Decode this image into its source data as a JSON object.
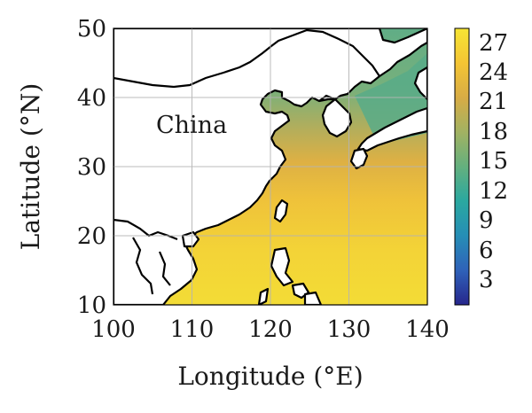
{
  "figure": {
    "map_label": "China",
    "xlabel": "Longitude (°E)",
    "ylabel": "Latitude (°N)",
    "xlim": [
      100,
      140
    ],
    "ylim": [
      10,
      50
    ],
    "x_ticks": [
      "100",
      "110",
      "120",
      "130",
      "140"
    ],
    "y_ticks": [
      "10",
      "20",
      "30",
      "40",
      "50"
    ],
    "grid": true,
    "colorbar": {
      "range": [
        0,
        28
      ],
      "ticks": [
        "3",
        "6",
        "9",
        "12",
        "15",
        "18",
        "21",
        "24",
        "27"
      ],
      "colors": [
        "#26268c",
        "#2f62b9",
        "#268eb6",
        "#2aa8a0",
        "#64b07e",
        "#a2b262",
        "#d8ac45",
        "#f4c534",
        "#f6e534"
      ]
    },
    "land_color": "#ffffff",
    "coastline_color": "#000000"
  }
}
